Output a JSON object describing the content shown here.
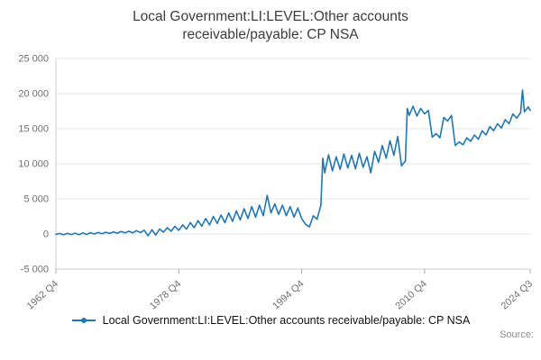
{
  "chart_data": {
    "type": "line",
    "title": "Local Government:LI:LEVEL:Other accounts receivable/payable: CP NSA",
    "title_lines": [
      "Local Government:LI:LEVEL:Other accounts",
      "receivable/payable: CP NSA"
    ],
    "source_label": "Source:",
    "legend": [
      {
        "label": "Local Government:LI:LEVEL:Other accounts receivable/payable: CP NSA",
        "color": "#1f77b4"
      }
    ],
    "x_axis": {
      "min": 1962.75,
      "max": 2024.5,
      "ticks": [
        {
          "value": 1962.75,
          "label": "1962 Q4"
        },
        {
          "value": 1978.75,
          "label": "1978 Q4"
        },
        {
          "value": 1994.75,
          "label": "1994 Q4"
        },
        {
          "value": 2010.75,
          "label": "2010 Q4"
        },
        {
          "value": 2024.5,
          "label": "2024 Q3"
        }
      ]
    },
    "y_axis": {
      "min": -5000,
      "max": 25000,
      "ticks": [
        {
          "value": 25000,
          "label": "25 000"
        },
        {
          "value": 20000,
          "label": "20 000"
        },
        {
          "value": 15000,
          "label": "15 000"
        },
        {
          "value": 10000,
          "label": "10 000"
        },
        {
          "value": 5000,
          "label": "5 000"
        },
        {
          "value": 0,
          "label": "0"
        },
        {
          "value": -5000,
          "label": "-5 000"
        }
      ],
      "grid": true
    },
    "series": [
      {
        "name": "Local Government:LI:LEVEL:Other accounts receivable/payable: CP NSA",
        "color": "#1f77b4",
        "points": [
          [
            1962.75,
            -50
          ],
          [
            1963.25,
            80
          ],
          [
            1963.75,
            -120
          ],
          [
            1964.25,
            100
          ],
          [
            1964.75,
            -80
          ],
          [
            1965.25,
            120
          ],
          [
            1965.75,
            -100
          ],
          [
            1966.25,
            150
          ],
          [
            1966.75,
            -60
          ],
          [
            1967.25,
            180
          ],
          [
            1967.75,
            0
          ],
          [
            1968.25,
            220
          ],
          [
            1968.75,
            40
          ],
          [
            1969.25,
            250
          ],
          [
            1969.75,
            90
          ],
          [
            1970.25,
            300
          ],
          [
            1970.75,
            120
          ],
          [
            1971.25,
            350
          ],
          [
            1971.75,
            150
          ],
          [
            1972.25,
            400
          ],
          [
            1972.75,
            170
          ],
          [
            1973.25,
            480
          ],
          [
            1973.75,
            200
          ],
          [
            1974.25,
            540
          ],
          [
            1974.75,
            -260
          ],
          [
            1975.25,
            600
          ],
          [
            1975.75,
            -140
          ],
          [
            1976.25,
            700
          ],
          [
            1976.75,
            260
          ],
          [
            1977.25,
            900
          ],
          [
            1977.75,
            400
          ],
          [
            1978.25,
            1100
          ],
          [
            1978.75,
            520
          ],
          [
            1979.25,
            1300
          ],
          [
            1979.75,
            700
          ],
          [
            1980.25,
            1620
          ],
          [
            1980.75,
            900
          ],
          [
            1981.25,
            1900
          ],
          [
            1981.75,
            1100
          ],
          [
            1982.25,
            2200
          ],
          [
            1982.75,
            1300
          ],
          [
            1983.25,
            2500
          ],
          [
            1983.75,
            1500
          ],
          [
            1984.25,
            2700
          ],
          [
            1984.75,
            1600
          ],
          [
            1985.25,
            3000
          ],
          [
            1985.75,
            1800
          ],
          [
            1986.25,
            3300
          ],
          [
            1986.75,
            2000
          ],
          [
            1987.25,
            3600
          ],
          [
            1987.75,
            2200
          ],
          [
            1988.25,
            3900
          ],
          [
            1988.75,
            2400
          ],
          [
            1989.25,
            4100
          ],
          [
            1989.75,
            2600
          ],
          [
            1990.25,
            5500
          ],
          [
            1990.75,
            3000
          ],
          [
            1991.25,
            4300
          ],
          [
            1991.75,
            2800
          ],
          [
            1992.25,
            4100
          ],
          [
            1992.75,
            2600
          ],
          [
            1993.25,
            3900
          ],
          [
            1993.75,
            2400
          ],
          [
            1994.25,
            3700
          ],
          [
            1994.75,
            2200
          ],
          [
            1995.25,
            1400
          ],
          [
            1995.75,
            1000
          ],
          [
            1996.25,
            2600
          ],
          [
            1996.75,
            2100
          ],
          [
            1997.25,
            4100
          ],
          [
            1997.5,
            10800
          ],
          [
            1997.75,
            8700
          ],
          [
            1998.25,
            11300
          ],
          [
            1998.75,
            9000
          ],
          [
            1999.25,
            11000
          ],
          [
            1999.75,
            9200
          ],
          [
            2000.25,
            11400
          ],
          [
            2000.75,
            9400
          ],
          [
            2001.25,
            11200
          ],
          [
            2001.75,
            9300
          ],
          [
            2002.25,
            11500
          ],
          [
            2002.75,
            9500
          ],
          [
            2003.25,
            11000
          ],
          [
            2003.75,
            8700
          ],
          [
            2004.25,
            11800
          ],
          [
            2004.75,
            10200
          ],
          [
            2005.25,
            12600
          ],
          [
            2005.75,
            10800
          ],
          [
            2006.25,
            13300
          ],
          [
            2006.75,
            11200
          ],
          [
            2007.25,
            13900
          ],
          [
            2007.75,
            9700
          ],
          [
            2008.25,
            10400
          ],
          [
            2008.5,
            17900
          ],
          [
            2008.75,
            16900
          ],
          [
            2009.25,
            18200
          ],
          [
            2009.75,
            16800
          ],
          [
            2010.25,
            17900
          ],
          [
            2010.75,
            17100
          ],
          [
            2011.25,
            17600
          ],
          [
            2011.75,
            13800
          ],
          [
            2012.25,
            14300
          ],
          [
            2012.75,
            13700
          ],
          [
            2013.25,
            16600
          ],
          [
            2013.75,
            16100
          ],
          [
            2014.25,
            16900
          ],
          [
            2014.75,
            12600
          ],
          [
            2015.25,
            13100
          ],
          [
            2015.75,
            12700
          ],
          [
            2016.25,
            13700
          ],
          [
            2016.75,
            13200
          ],
          [
            2017.25,
            14100
          ],
          [
            2017.75,
            13500
          ],
          [
            2018.25,
            14700
          ],
          [
            2018.75,
            14100
          ],
          [
            2019.25,
            15300
          ],
          [
            2019.75,
            14700
          ],
          [
            2020.25,
            15700
          ],
          [
            2020.75,
            15100
          ],
          [
            2021.25,
            16300
          ],
          [
            2021.75,
            15700
          ],
          [
            2022.25,
            17100
          ],
          [
            2022.75,
            16500
          ],
          [
            2023.25,
            17300
          ],
          [
            2023.5,
            20500
          ],
          [
            2023.75,
            17400
          ],
          [
            2024.25,
            18100
          ],
          [
            2024.5,
            17600
          ]
        ]
      }
    ]
  }
}
